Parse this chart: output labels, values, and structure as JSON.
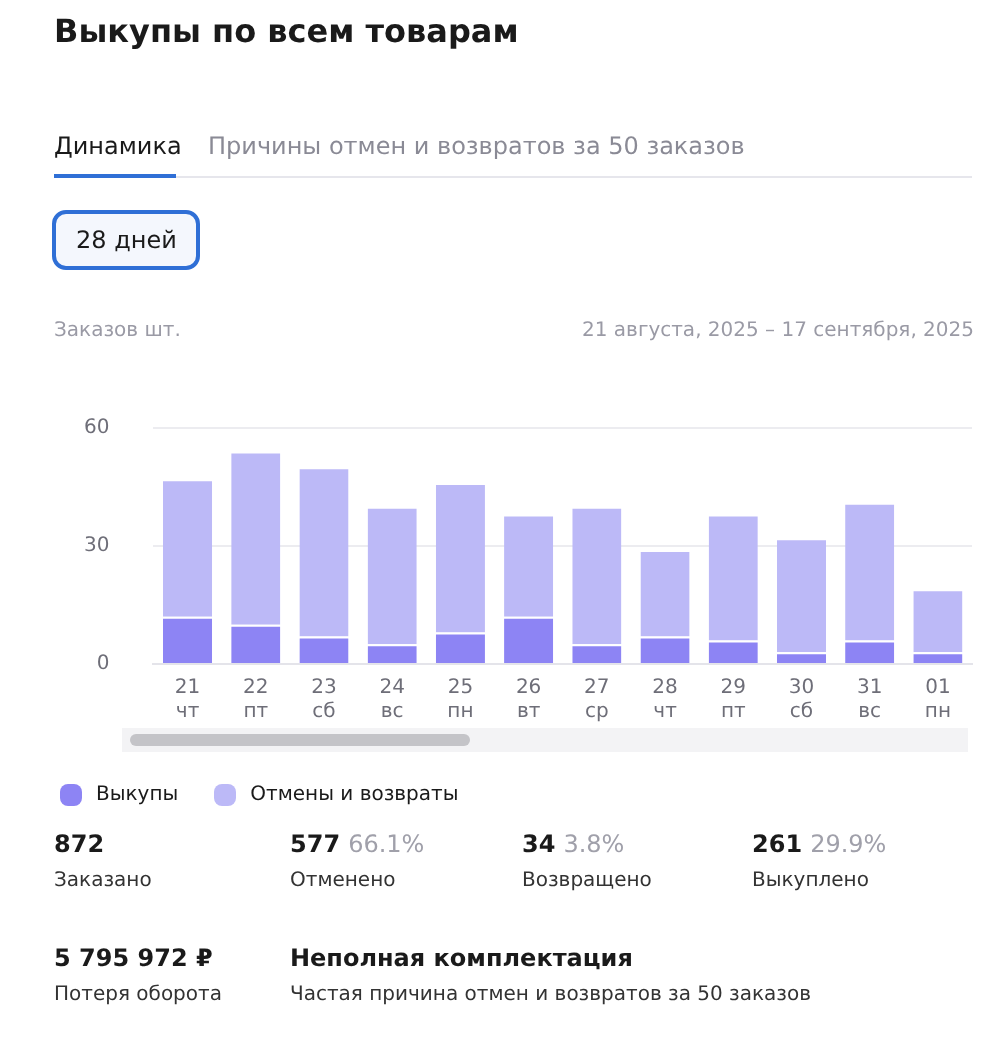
{
  "chart_data": {
    "type": "bar",
    "title": "Выкупы по всем товарам",
    "subtitle": "21 августа, 2025 – 17 сентября, 2025",
    "ylabel": "Заказов шт.",
    "categories": [
      "21\nчт",
      "22\nпт",
      "23\nсб",
      "24\nвс",
      "25\nпн",
      "26\nвт",
      "27\nср",
      "28\nчт",
      "29\nпт",
      "30\nсб",
      "31\nвс",
      "01\nпн"
    ],
    "stacked": true,
    "series": [
      {
        "name": "Выкупы",
        "color": "#8d84f4",
        "values": [
          12,
          10,
          7,
          5,
          8,
          12,
          5,
          7,
          6,
          3,
          6,
          3
        ]
      },
      {
        "name": "Отмены и возвраты",
        "color": "#bcb9f7",
        "values": [
          35,
          44,
          43,
          35,
          38,
          26,
          35,
          22,
          32,
          29,
          35,
          16
        ]
      }
    ],
    "ylim": [
      0,
      60
    ],
    "yticks": [
      0,
      30,
      60
    ],
    "grid": "y",
    "legend": "bottom left",
    "annotations": [
      "Динамика",
      "Причины отмен и возвратов за 50 заказов",
      "28 дней",
      "872",
      "Заказано",
      "577",
      "66.1%",
      "Отменено",
      "34",
      "3.8%",
      "Возвращено",
      "261",
      "29.9%",
      "Выкуплено",
      "5 795 972 ₽",
      "Потеря оборота",
      "Неполная комплектация",
      "Частая причина отмен и возвратов за 50 заказов"
    ]
  }
}
